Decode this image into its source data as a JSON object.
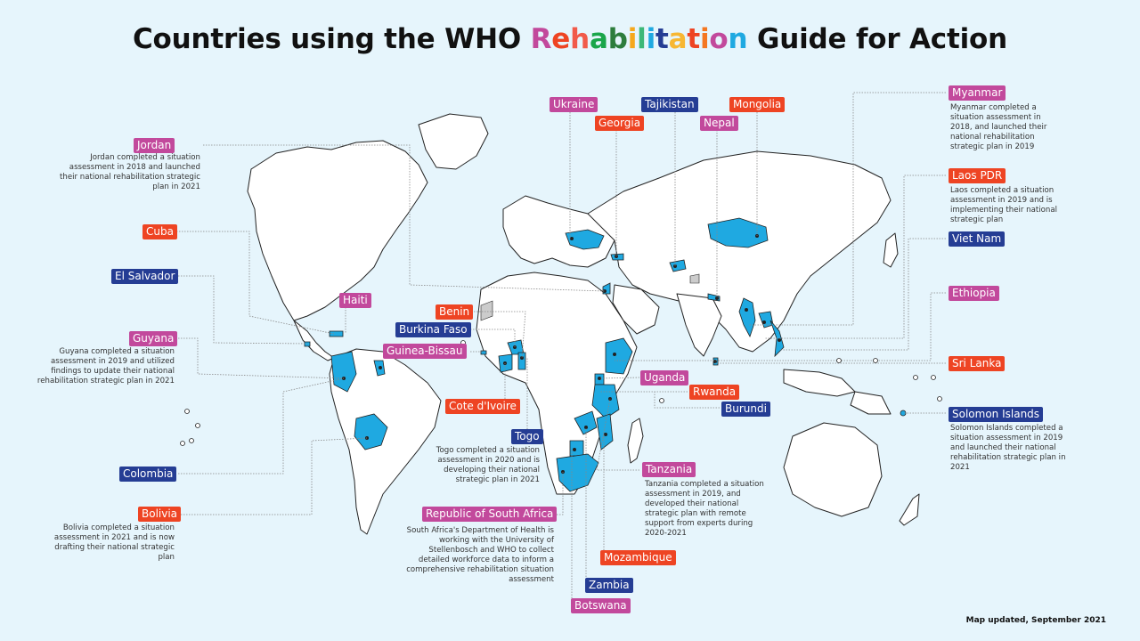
{
  "title": {
    "before": "Countries using the WHO",
    "highlight_letters": [
      {
        "ch": "R",
        "color": "#c2499c"
      },
      {
        "ch": "e",
        "color": "#ee4423"
      },
      {
        "ch": "h",
        "color": "#f15a4a"
      },
      {
        "ch": "a",
        "color": "#1aa64a"
      },
      {
        "ch": "b",
        "color": "#2d7d3c"
      },
      {
        "ch": "i",
        "color": "#f6a81c"
      },
      {
        "ch": "l",
        "color": "#3cb878"
      },
      {
        "ch": "i",
        "color": "#1fa9e1"
      },
      {
        "ch": "t",
        "color": "#253d94"
      },
      {
        "ch": "a",
        "color": "#f7b733"
      },
      {
        "ch": "t",
        "color": "#ee4423"
      },
      {
        "ch": "i",
        "color": "#f47721"
      },
      {
        "ch": "o",
        "color": "#c2499c"
      },
      {
        "ch": "n",
        "color": "#1fa9e1"
      }
    ],
    "after": "Guide for Action"
  },
  "colors": {
    "background": "#e6f5fc",
    "land": "#ffffff",
    "highlighted_country": "#1fa9e1",
    "disputed": "#cccccc",
    "label_red": "#ee4423",
    "label_blue": "#253d94",
    "label_pink": "#c2499c"
  },
  "countries": {
    "jordan": {
      "label": "Jordan",
      "desc": "Jordan completed a situation assessment in 2018 and launched their national rehabilitation strategic plan in 2021"
    },
    "cuba": {
      "label": "Cuba"
    },
    "el_salvador": {
      "label": "El Salvador"
    },
    "haiti": {
      "label": "Haiti"
    },
    "guyana": {
      "label": "Guyana",
      "desc": "Guyana completed a situation assessment in 2019 and utilized findings to update their national rehabilitation strategic plan in 2021"
    },
    "colombia": {
      "label": "Colombia"
    },
    "bolivia": {
      "label": "Bolivia",
      "desc": "Bolivia completed a situation assessment in 2021 and is now drafting their national strategic plan"
    },
    "benin": {
      "label": "Benin"
    },
    "burkina_faso": {
      "label": "Burkina Faso"
    },
    "guinea_bissau": {
      "label": "Guinea-Bissau"
    },
    "cote_divoire": {
      "label": "Cote d'Ivoire"
    },
    "togo": {
      "label": "Togo",
      "desc": "Togo completed a situation assessment in 2020 and is developing their national strategic plan in 2021"
    },
    "south_africa": {
      "label": "Republic of South Africa",
      "desc": "South Africa's Department of Health is working with the University of Stellenbosch and WHO to collect detailed workforce data to inform a comprehensive rehabilitation situation assessment"
    },
    "botswana": {
      "label": "Botswana"
    },
    "zambia": {
      "label": "Zambia"
    },
    "mozambique": {
      "label": "Mozambique"
    },
    "tanzania": {
      "label": "Tanzania",
      "desc": "Tanzania completed a situation assessment in 2019, and developed their national strategic plan with remote support from experts during 2020-2021"
    },
    "uganda": {
      "label": "Uganda"
    },
    "rwanda": {
      "label": "Rwanda"
    },
    "burundi": {
      "label": "Burundi"
    },
    "ukraine": {
      "label": "Ukraine"
    },
    "georgia": {
      "label": "Georgia"
    },
    "tajikistan": {
      "label": "Tajikistan"
    },
    "nepal": {
      "label": "Nepal"
    },
    "mongolia": {
      "label": "Mongolia"
    },
    "myanmar": {
      "label": "Myanmar",
      "desc": "Myanmar completed a situation assessment in 2018, and launched their national rehabilitation strategic plan in 2019"
    },
    "laos": {
      "label": "Laos PDR",
      "desc": "Laos completed a situation assessment in 2019 and is implementing their national strategic plan"
    },
    "viet_nam": {
      "label": "Viet Nam"
    },
    "ethiopia": {
      "label": "Ethiopia"
    },
    "sri_lanka": {
      "label": "Sri Lanka"
    },
    "solomon_islands": {
      "label": "Solomon Islands",
      "desc": "Solomon Islands completed a situation assessment in 2019 and launched their national rehabilitation strategic plan in 2021"
    }
  },
  "footer": "Map updated, September 2021"
}
